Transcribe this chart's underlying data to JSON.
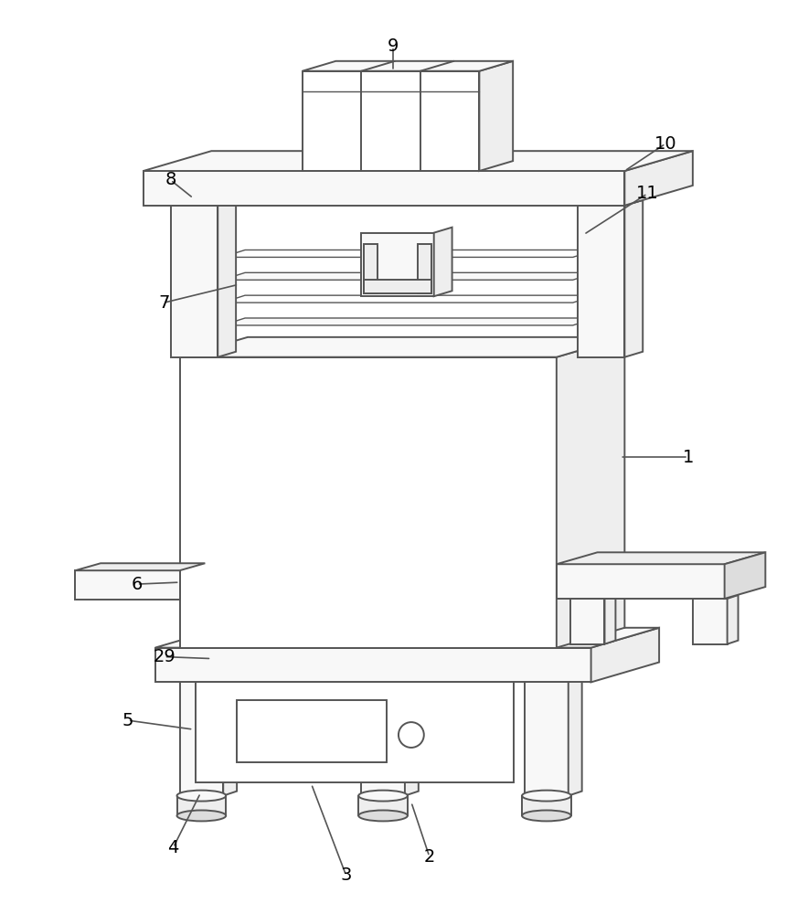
{
  "bg_color": "#ffffff",
  "line_color": "#555555",
  "lw": 1.4,
  "lw_thin": 1.0
}
